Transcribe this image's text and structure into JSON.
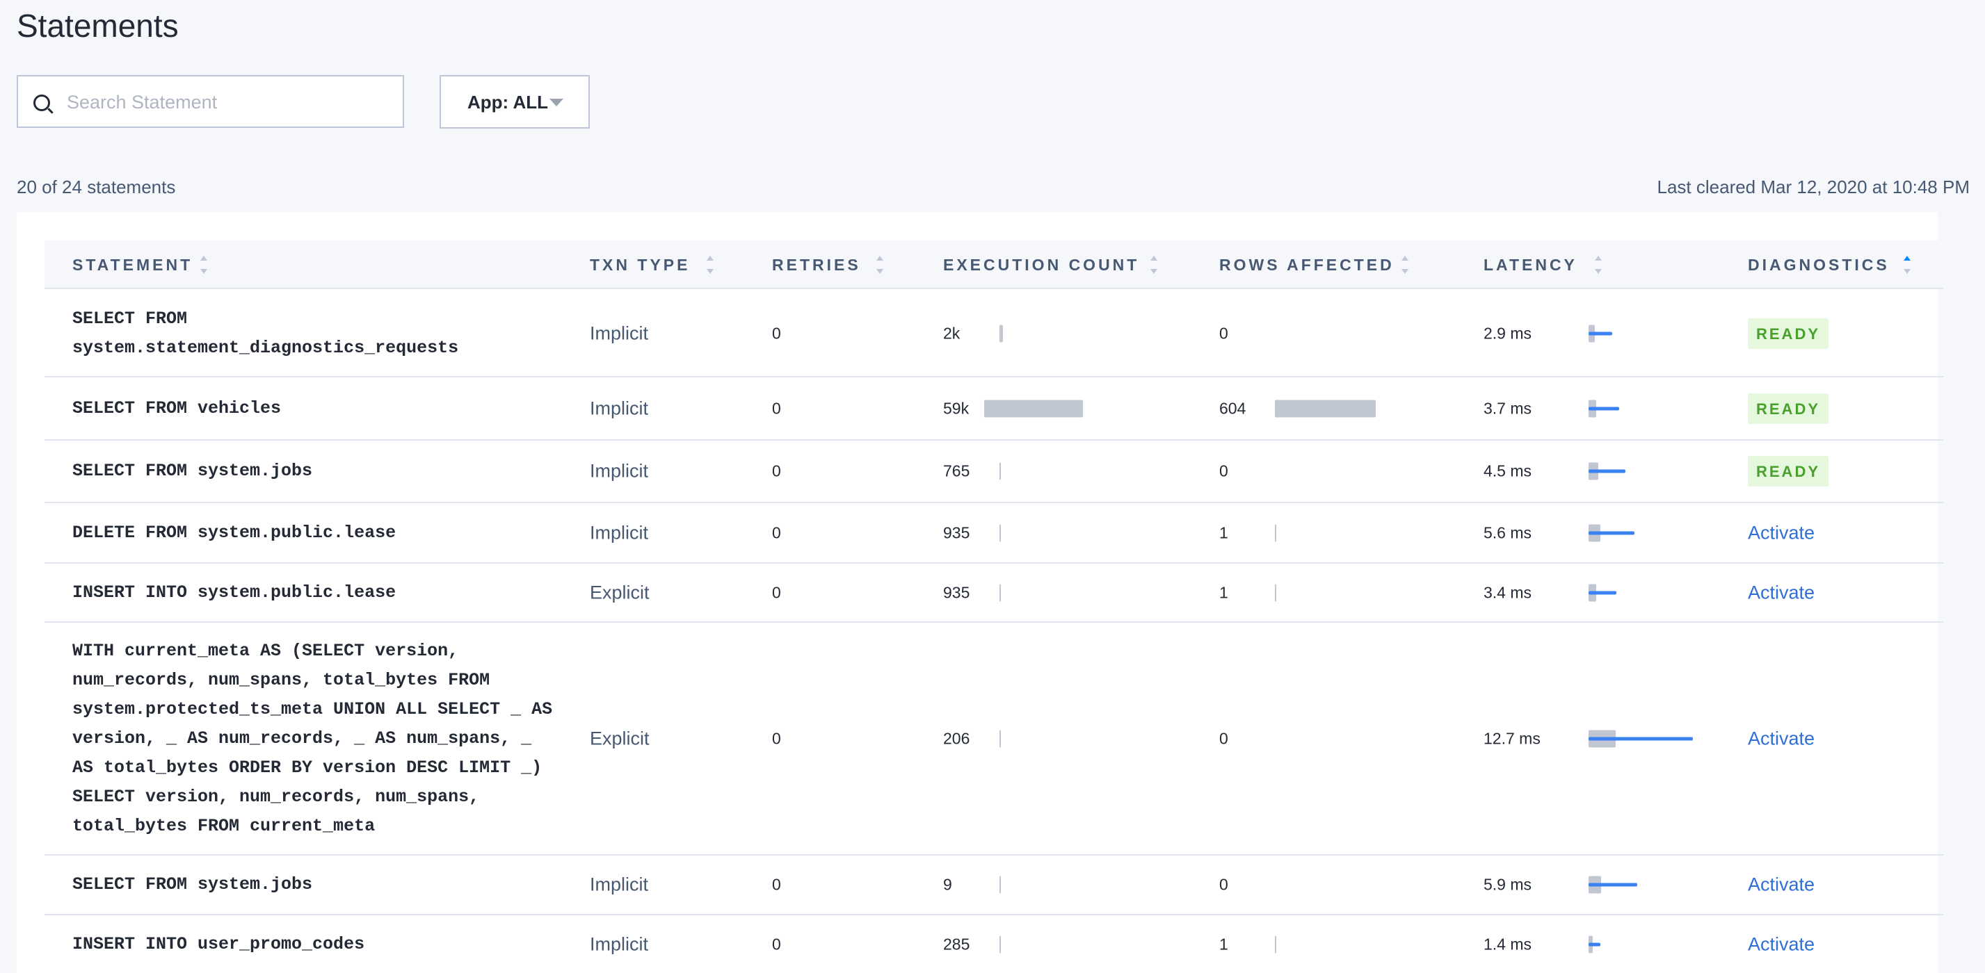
{
  "header": {
    "title": "Statements"
  },
  "search": {
    "placeholder": "Search Statement"
  },
  "app_filter": "App: ALL",
  "summary": "20 of 24 statements",
  "last_cleared": "Last cleared Mar 12, 2020 at 10:48 PM",
  "table": {
    "columns": [
      "STATEMENT",
      "TXN TYPE",
      "RETRIES",
      "EXECUTION COUNT",
      "ROWS AFFECTED",
      "LATENCY",
      "DIAGNOSTICS"
    ],
    "rows": [
      {
        "statement": "SELECT FROM system.statement_diagnostics_requests",
        "txn_type": "Implicit",
        "retries": 0,
        "execution_count": "2k",
        "rows_affected": 0,
        "latency": "2.9 ms",
        "diagnostics": "READY"
      },
      {
        "statement": "SELECT FROM vehicles",
        "txn_type": "Implicit",
        "retries": 0,
        "execution_count": "59k",
        "rows_affected": 604,
        "latency": "3.7 ms",
        "diagnostics": "READY"
      },
      {
        "statement": "SELECT FROM system.jobs",
        "txn_type": "Implicit",
        "retries": 0,
        "execution_count": 765,
        "rows_affected": 0,
        "latency": "4.5 ms",
        "diagnostics": "READY"
      },
      {
        "statement": "DELETE FROM system.public.lease",
        "txn_type": "Implicit",
        "retries": 0,
        "execution_count": 935,
        "rows_affected": 1,
        "latency": "5.6 ms",
        "diagnostics": "Activate"
      },
      {
        "statement": "INSERT INTO system.public.lease",
        "txn_type": "Explicit",
        "retries": 0,
        "execution_count": 935,
        "rows_affected": 1,
        "latency": "3.4 ms",
        "diagnostics": "Activate"
      },
      {
        "statement": "WITH current_meta AS (SELECT version, num_records, num_spans, total_bytes FROM system.protected_ts_meta UNION ALL SELECT _ AS version, _ AS num_records, _ AS num_spans, _ AS total_bytes ORDER BY version DESC LIMIT _) SELECT version, num_records, num_spans, total_bytes FROM current_meta",
        "txn_type": "Explicit",
        "retries": 0,
        "execution_count": 206,
        "rows_affected": 0,
        "latency": "12.7 ms",
        "diagnostics": "Activate"
      },
      {
        "statement": "SELECT FROM system.jobs",
        "txn_type": "Implicit",
        "retries": 0,
        "execution_count": 9,
        "rows_affected": 0,
        "latency": "5.9 ms",
        "diagnostics": "Activate"
      },
      {
        "statement": "INSERT INTO user_promo_codes",
        "txn_type": "Implicit",
        "retries": 0,
        "execution_count": 285,
        "rows_affected": 1,
        "latency": "1.4 ms",
        "diagnostics": "Activate"
      }
    ]
  }
}
